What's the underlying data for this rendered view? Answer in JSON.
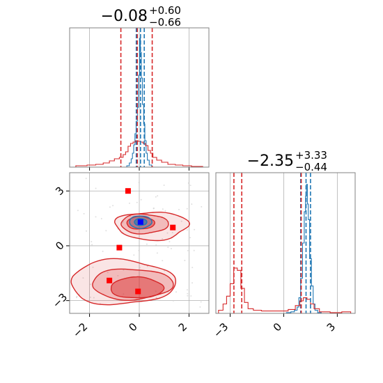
{
  "chart_data": {
    "type": "corner",
    "colors": {
      "reference": "#1f77b4",
      "model": "#d62728",
      "truth": "#0000ff",
      "grid": "#b0b0b0",
      "frame": "#808080"
    },
    "grid": true,
    "panels": [
      {
        "id": "hist-param1",
        "type": "histogram",
        "title": {
          "median": "−0.08",
          "plus": "+0.60",
          "minus": "−0.66"
        },
        "xlim": [
          -2.8,
          2.8
        ],
        "xticks": [
          -2,
          0,
          2
        ],
        "quantile_lines": {
          "reference": [
            -0.12,
            0.05,
            0.2
          ],
          "model": [
            -0.74,
            -0.08,
            0.52
          ]
        },
        "series": [
          {
            "name": "",
            "color": "#1f77b4",
            "x": [
              -0.55,
              -0.45,
              -0.35,
              -0.3,
              -0.25,
              -0.2,
              -0.15,
              -0.1,
              -0.05,
              0.0,
              0.03,
              0.06,
              0.1,
              0.15,
              0.2,
              0.25,
              0.3,
              0.35,
              0.45,
              0.55
            ],
            "y": [
              0,
              2,
              6,
              12,
              20,
              32,
              48,
              66,
              86,
              132,
              185,
              165,
              128,
              90,
              62,
              38,
              20,
              10,
              3,
              0
            ]
          },
          {
            "name": "",
            "color": "#d62728",
            "x": [
              -2.8,
              -2.3,
              -1.9,
              -1.6,
              -1.3,
              -1.1,
              -0.9,
              -0.7,
              -0.6,
              -0.5,
              -0.4,
              -0.3,
              -0.2,
              -0.1,
              0.0,
              0.1,
              0.2,
              0.3,
              0.4,
              0.5,
              0.6,
              0.8,
              1.0,
              1.3,
              1.6,
              1.9,
              2.3,
              2.8
            ],
            "y": [
              0,
              2,
              3,
              4,
              6,
              9,
              12,
              14,
              18,
              22,
              30,
              34,
              36,
              38,
              37,
              36,
              34,
              31,
              24,
              20,
              14,
              10,
              7,
              4,
              3,
              2,
              1,
              0
            ]
          }
        ],
        "ylim": [
          0,
          200
        ]
      },
      {
        "id": "hist-param2",
        "type": "histogram",
        "title": {
          "median": "−2.35",
          "plus": "+3.33",
          "minus": "−0.44"
        },
        "xlim": [
          -3.8,
          4.0
        ],
        "xticks": [
          -3,
          0,
          3
        ],
        "quantile_lines": {
          "reference": [
            0.95,
            1.25,
            1.5
          ],
          "model": [
            -2.79,
            -2.35,
            0.98
          ]
        },
        "series": [
          {
            "name": "",
            "color": "#1f77b4",
            "x": [
              0.0,
              0.3,
              0.5,
              0.7,
              0.8,
              0.9,
              1.0,
              1.1,
              1.2,
              1.25,
              1.3,
              1.35,
              1.4,
              1.5,
              1.6,
              1.7,
              1.8,
              2.0,
              2.2
            ],
            "y": [
              0,
              1,
              2,
              4,
              8,
              20,
              45,
              90,
              130,
              150,
              165,
              140,
              120,
              70,
              35,
              12,
              4,
              1,
              0
            ]
          },
          {
            "name": "",
            "color": "#d62728",
            "x": [
              -3.8,
              -3.5,
              -3.3,
              -3.1,
              -2.9,
              -2.7,
              -2.5,
              -2.3,
              -2.1,
              -1.9,
              -1.5,
              -1.0,
              -0.5,
              0.0,
              0.5,
              0.8,
              1.0,
              1.2,
              1.4,
              1.6,
              1.8,
              2.2,
              3.0,
              3.5,
              4.0
            ],
            "y": [
              0,
              4,
              12,
              22,
              38,
              58,
              55,
              32,
              14,
              6,
              4,
              3,
              3,
              3,
              5,
              10,
              16,
              20,
              18,
              12,
              6,
              2,
              1,
              2,
              0
            ]
          }
        ],
        "ylim": [
          0,
          180
        ]
      },
      {
        "id": "joint-param1-param2",
        "type": "contour",
        "xlim": [
          -2.8,
          2.8
        ],
        "ylim": [
          -3.7,
          4.0
        ],
        "xticks": [
          -2,
          0,
          2
        ],
        "yticks": [
          -3,
          0,
          3
        ],
        "model_samples": [
          {
            "x": -0.45,
            "y": 3.0
          },
          {
            "x": 1.35,
            "y": 1.0
          },
          {
            "x": -0.8,
            "y": -0.1
          },
          {
            "x": -1.2,
            "y": -1.9
          },
          {
            "x": -0.05,
            "y": -2.5
          }
        ],
        "truth": {
          "x": 0.05,
          "y": 1.3
        }
      }
    ]
  }
}
